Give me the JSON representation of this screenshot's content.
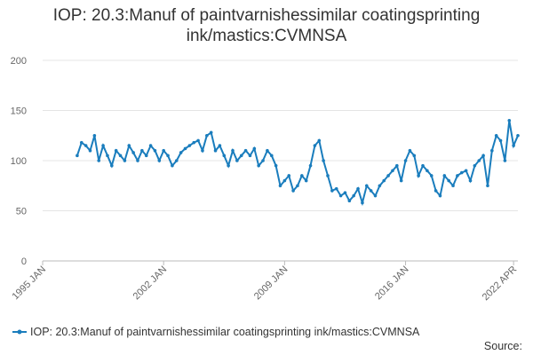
{
  "chart_data": {
    "type": "line",
    "title": "IOP: 20.3:Manuf of paintvarnishessimilar coatingsprinting ink/mastics:CVMNSA",
    "source_label": "Source:",
    "x": [
      "1997 JAN",
      "1997 APR",
      "1997 JUL",
      "1997 OCT",
      "1998 JAN",
      "1998 APR",
      "1998 JUL",
      "1998 OCT",
      "1999 JAN",
      "1999 APR",
      "1999 JUL",
      "1999 OCT",
      "2000 JAN",
      "2000 APR",
      "2000 JUL",
      "2000 OCT",
      "2001 JAN",
      "2001 APR",
      "2001 JUL",
      "2001 OCT",
      "2002 JAN",
      "2002 APR",
      "2002 JUL",
      "2002 OCT",
      "2003 JAN",
      "2003 APR",
      "2003 JUL",
      "2003 OCT",
      "2004 JAN",
      "2004 APR",
      "2004 JUL",
      "2004 OCT",
      "2005 JAN",
      "2005 APR",
      "2005 JUL",
      "2005 OCT",
      "2006 JAN",
      "2006 APR",
      "2006 JUL",
      "2006 OCT",
      "2007 JAN",
      "2007 APR",
      "2007 JUL",
      "2007 OCT",
      "2008 JAN",
      "2008 APR",
      "2008 JUL",
      "2008 OCT",
      "2009 JAN",
      "2009 APR",
      "2009 JUL",
      "2009 OCT",
      "2010 JAN",
      "2010 APR",
      "2010 JUL",
      "2010 OCT",
      "2011 JAN",
      "2011 APR",
      "2011 JUL",
      "2011 OCT",
      "2012 JAN",
      "2012 APR",
      "2012 JUL",
      "2012 OCT",
      "2013 JAN",
      "2013 APR",
      "2013 JUL",
      "2013 OCT",
      "2014 JAN",
      "2014 APR",
      "2014 JUL",
      "2014 OCT",
      "2015 JAN",
      "2015 APR",
      "2015 JUL",
      "2015 OCT",
      "2016 JAN",
      "2016 APR",
      "2016 JUL",
      "2016 OCT",
      "2017 JAN",
      "2017 APR",
      "2017 JUL",
      "2017 OCT",
      "2018 JAN",
      "2018 APR",
      "2018 JUL",
      "2018 OCT",
      "2019 JAN",
      "2019 APR",
      "2019 JUL",
      "2019 OCT",
      "2020 JAN",
      "2020 APR",
      "2020 JUL",
      "2020 OCT",
      "2021 JAN",
      "2021 APR",
      "2021 JUL",
      "2021 OCT",
      "2022 JAN",
      "2022 APR",
      "2022 JUL"
    ],
    "series": [
      {
        "name": "IOP: 20.3:Manuf of paintvarnishessimilar coatingsprinting ink/mastics:CVMNSA",
        "color": "#1a7dbd",
        "values": [
          105,
          118,
          115,
          110,
          125,
          100,
          115,
          105,
          95,
          110,
          105,
          100,
          115,
          108,
          100,
          110,
          105,
          115,
          110,
          100,
          110,
          105,
          95,
          100,
          108,
          112,
          115,
          118,
          120,
          110,
          125,
          128,
          110,
          115,
          105,
          95,
          110,
          100,
          105,
          110,
          105,
          112,
          95,
          100,
          110,
          105,
          95,
          75,
          80,
          85,
          70,
          75,
          85,
          80,
          95,
          115,
          120,
          100,
          85,
          70,
          72,
          65,
          68,
          60,
          65,
          72,
          58,
          75,
          70,
          65,
          75,
          80,
          85,
          90,
          95,
          80,
          100,
          110,
          105,
          85,
          95,
          90,
          85,
          70,
          65,
          85,
          80,
          75,
          85,
          88,
          90,
          80,
          95,
          100,
          105,
          75,
          110,
          125,
          120,
          100,
          140,
          115,
          125
        ]
      }
    ],
    "xlim": [
      "1995 JAN",
      "2022 JUL"
    ],
    "xticks": [
      "1995 JAN",
      "2002 JAN",
      "2009 JAN",
      "2016 JAN",
      "2022 APR"
    ],
    "ylim": [
      0,
      200
    ],
    "yticks": [
      0,
      50,
      100,
      150,
      200
    ],
    "grid": true
  }
}
